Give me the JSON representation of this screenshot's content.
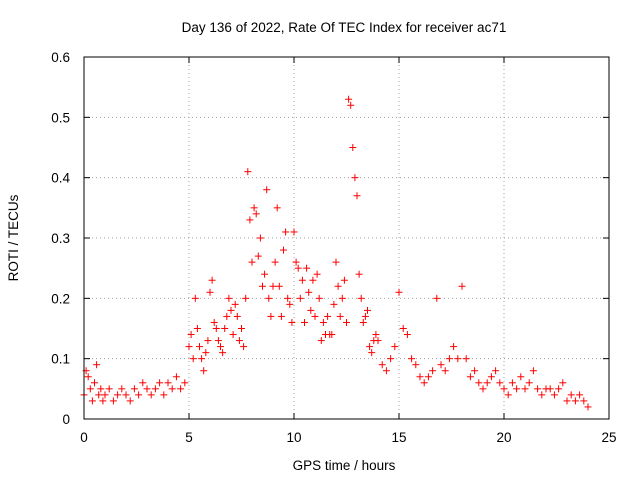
{
  "chart_data": {
    "type": "scatter",
    "title": "Day 136 of 2022, Rate Of TEC Index for receiver ac71",
    "xlabel": "GPS time / hours",
    "ylabel": "ROTI / TECUs",
    "xlim": [
      0,
      25
    ],
    "ylim": [
      0,
      0.6
    ],
    "xticks": [
      "0",
      "5",
      "10",
      "15",
      "20",
      "25"
    ],
    "yticks": [
      "0",
      "0.1",
      "0.2",
      "0.3",
      "0.4",
      "0.5",
      "0.6"
    ],
    "grid": true,
    "marker": "+",
    "color": "#ff0000",
    "series": [
      {
        "x": [
          0.0,
          0.1,
          0.2,
          0.3,
          0.4,
          0.5,
          0.6,
          0.7,
          0.8,
          0.9,
          1.0,
          1.2,
          1.4,
          1.6,
          1.8,
          2.0,
          2.2,
          2.4,
          2.6,
          2.8,
          3.0,
          3.2,
          3.4,
          3.6,
          3.8,
          4.0,
          4.2,
          4.4,
          4.6,
          4.8,
          5.0,
          5.1,
          5.2,
          5.3,
          5.4,
          5.5,
          5.6,
          5.7,
          5.8,
          5.9,
          6.0,
          6.1,
          6.2,
          6.3,
          6.4,
          6.5,
          6.6,
          6.7,
          6.8,
          6.9,
          7.0,
          7.1,
          7.2,
          7.3,
          7.4,
          7.5,
          7.6,
          7.7,
          7.8,
          7.9,
          8.0,
          8.1,
          8.2,
          8.3,
          8.4,
          8.5,
          8.6,
          8.7,
          8.8,
          8.9,
          9.0,
          9.1,
          9.2,
          9.3,
          9.4,
          9.5,
          9.6,
          9.7,
          9.8,
          9.9,
          10.0,
          10.1,
          10.2,
          10.3,
          10.4,
          10.5,
          10.6,
          10.7,
          10.8,
          10.9,
          11.0,
          11.1,
          11.2,
          11.3,
          11.4,
          11.5,
          11.6,
          11.7,
          11.8,
          11.9,
          12.0,
          12.1,
          12.2,
          12.3,
          12.4,
          12.5,
          12.6,
          12.7,
          12.8,
          12.9,
          13.0,
          13.1,
          13.2,
          13.3,
          13.4,
          13.5,
          13.6,
          13.7,
          13.8,
          13.9,
          14.0,
          14.2,
          14.4,
          14.6,
          14.8,
          15.0,
          15.2,
          15.4,
          15.6,
          15.8,
          16.0,
          16.2,
          16.4,
          16.6,
          16.8,
          17.0,
          17.2,
          17.4,
          17.6,
          17.8,
          18.0,
          18.2,
          18.4,
          18.6,
          18.8,
          19.0,
          19.2,
          19.4,
          19.6,
          19.8,
          20.0,
          20.2,
          20.4,
          20.6,
          20.8,
          21.0,
          21.2,
          21.4,
          21.6,
          21.8,
          22.0,
          22.2,
          22.4,
          22.6,
          22.8,
          23.0,
          23.2,
          23.4,
          23.6,
          23.8,
          24.0
        ],
        "y": [
          0.04,
          0.08,
          0.07,
          0.05,
          0.03,
          0.06,
          0.09,
          0.04,
          0.05,
          0.03,
          0.04,
          0.05,
          0.03,
          0.04,
          0.05,
          0.04,
          0.03,
          0.05,
          0.04,
          0.06,
          0.05,
          0.04,
          0.05,
          0.06,
          0.04,
          0.06,
          0.05,
          0.07,
          0.05,
          0.06,
          0.12,
          0.14,
          0.1,
          0.2,
          0.15,
          0.12,
          0.1,
          0.08,
          0.11,
          0.13,
          0.21,
          0.23,
          0.16,
          0.15,
          0.13,
          0.12,
          0.11,
          0.15,
          0.17,
          0.2,
          0.18,
          0.14,
          0.19,
          0.17,
          0.13,
          0.15,
          0.12,
          0.2,
          0.41,
          0.33,
          0.26,
          0.35,
          0.34,
          0.27,
          0.3,
          0.22,
          0.24,
          0.38,
          0.2,
          0.17,
          0.22,
          0.26,
          0.35,
          0.22,
          0.17,
          0.28,
          0.31,
          0.2,
          0.19,
          0.16,
          0.31,
          0.26,
          0.25,
          0.2,
          0.23,
          0.16,
          0.25,
          0.21,
          0.18,
          0.23,
          0.17,
          0.24,
          0.2,
          0.13,
          0.16,
          0.14,
          0.17,
          0.14,
          0.14,
          0.19,
          0.26,
          0.22,
          0.17,
          0.2,
          0.23,
          0.16,
          0.53,
          0.52,
          0.45,
          0.4,
          0.37,
          0.24,
          0.2,
          0.16,
          0.17,
          0.18,
          0.12,
          0.11,
          0.13,
          0.14,
          0.13,
          0.09,
          0.08,
          0.1,
          0.12,
          0.21,
          0.15,
          0.14,
          0.1,
          0.09,
          0.07,
          0.06,
          0.07,
          0.08,
          0.2,
          0.09,
          0.08,
          0.1,
          0.12,
          0.1,
          0.22,
          0.1,
          0.07,
          0.08,
          0.06,
          0.05,
          0.06,
          0.07,
          0.08,
          0.06,
          0.05,
          0.04,
          0.06,
          0.05,
          0.07,
          0.05,
          0.06,
          0.08,
          0.05,
          0.04,
          0.05,
          0.05,
          0.04,
          0.05,
          0.06,
          0.03,
          0.04,
          0.03,
          0.04,
          0.03,
          0.02
        ]
      }
    ]
  }
}
